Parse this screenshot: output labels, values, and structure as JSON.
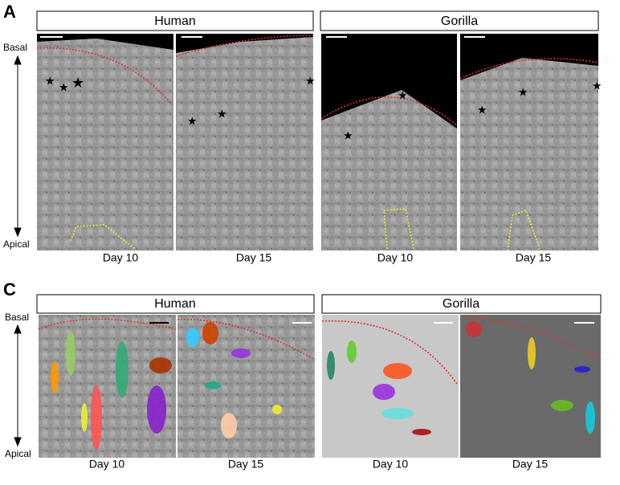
{
  "panels": [
    {
      "label": "A",
      "axis": {
        "top": "Basal",
        "bottom": "Apical"
      },
      "groups": [
        {
          "title": "Human",
          "images": [
            {
              "caption": "Day 10"
            },
            {
              "caption": "Day 15"
            }
          ]
        },
        {
          "title": "Gorilla",
          "images": [
            {
              "caption": "Day 10"
            },
            {
              "caption": "Day 15"
            }
          ]
        }
      ]
    },
    {
      "label": "C",
      "axis": {
        "top": "Basal",
        "bottom": "Apical"
      },
      "groups": [
        {
          "title": "Human",
          "images": [
            {
              "caption": "Day 10"
            },
            {
              "caption": "Day 15"
            }
          ]
        },
        {
          "title": "Gorilla",
          "images": [
            {
              "caption": "Day 10"
            },
            {
              "caption": "Day 15"
            }
          ]
        }
      ]
    }
  ]
}
